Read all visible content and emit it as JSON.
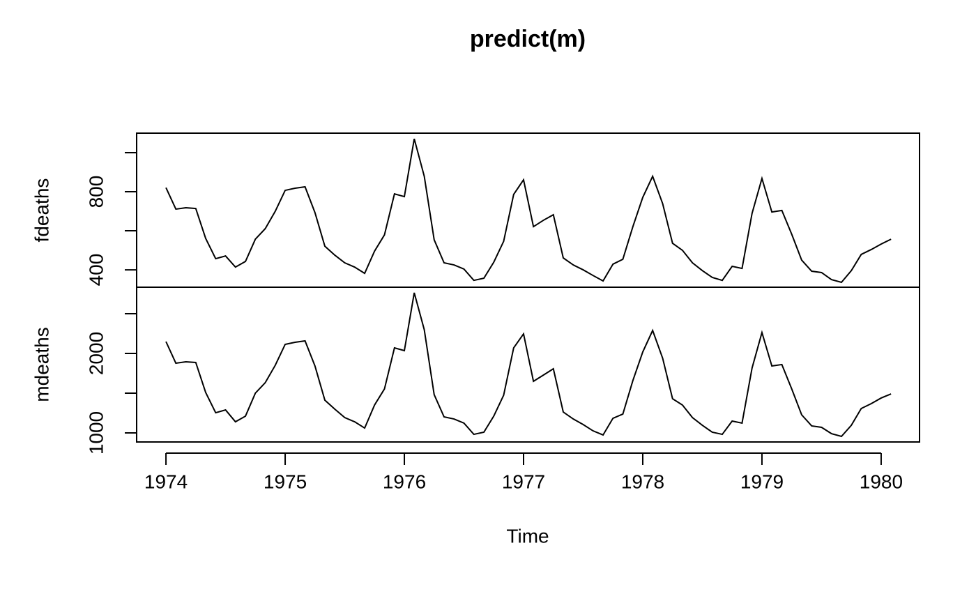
{
  "chart_data": {
    "type": "line",
    "title": "predict(m)",
    "xlabel": "Time",
    "color": "#000000",
    "x": [
      1974.0,
      1974.083,
      1974.167,
      1974.25,
      1974.333,
      1974.417,
      1974.5,
      1974.583,
      1974.667,
      1974.75,
      1974.833,
      1974.917,
      1975.0,
      1975.083,
      1975.167,
      1975.25,
      1975.333,
      1975.417,
      1975.5,
      1975.583,
      1975.667,
      1975.75,
      1975.833,
      1975.917,
      1976.0,
      1976.083,
      1976.167,
      1976.25,
      1976.333,
      1976.417,
      1976.5,
      1976.583,
      1976.667,
      1976.75,
      1976.833,
      1976.917,
      1977.0,
      1977.083,
      1977.167,
      1977.25,
      1977.333,
      1977.417,
      1977.5,
      1977.583,
      1977.667,
      1977.75,
      1977.833,
      1977.917,
      1978.0,
      1978.083,
      1978.167,
      1978.25,
      1978.333,
      1978.417,
      1978.5,
      1978.583,
      1978.667,
      1978.75,
      1978.833,
      1978.917,
      1979.0,
      1979.083,
      1979.167,
      1979.25,
      1979.333,
      1979.417,
      1979.5,
      1979.583,
      1979.667,
      1979.75,
      1979.833,
      1979.917,
      1980.0,
      1980.083
    ],
    "xlim": [
      1973.754,
      1980.322
    ],
    "xticks": [
      1974,
      1975,
      1976,
      1977,
      1978,
      1979,
      1980
    ],
    "panels": [
      {
        "ylabel": "fdeaths",
        "ylim": [
          311,
          1100
        ],
        "yticks": [
          400,
          800
        ],
        "minor_yticks": [
          600,
          1000
        ],
        "values": [
          821,
          711,
          718,
          714,
          561,
          457,
          471,
          414,
          443,
          557,
          611,
          700,
          807,
          818,
          825,
          693,
          521,
          475,
          436,
          414,
          382,
          496,
          579,
          789,
          775,
          1071,
          879,
          554,
          436,
          425,
          404,
          346,
          357,
          439,
          546,
          786,
          861,
          621,
          654,
          682,
          461,
          425,
          400,
          371,
          343,
          429,
          454,
          621,
          771,
          879,
          739,
          536,
          500,
          436,
          396,
          361,
          346,
          418,
          407,
          689,
          868,
          696,
          704,
          582,
          450,
          393,
          386,
          350,
          336,
          396,
          479,
          504,
          532,
          557
        ]
      },
      {
        "ylabel": "mdeaths",
        "ylim": [
          886,
          2833
        ],
        "yticks": [
          1000,
          2000
        ],
        "minor_yticks": [
          1500,
          2500
        ],
        "values": [
          2149,
          1877,
          1895,
          1886,
          1509,
          1254,
          1289,
          1140,
          1211,
          1500,
          1632,
          1851,
          2114,
          2140,
          2158,
          1842,
          1412,
          1298,
          1193,
          1140,
          1061,
          1351,
          1553,
          2070,
          2035,
          2763,
          2298,
          1482,
          1202,
          1175,
          1123,
          982,
          1009,
          1211,
          1474,
          2070,
          2246,
          1649,
          1728,
          1807,
          1263,
          1175,
          1105,
          1026,
          974,
          1184,
          1237,
          1658,
          2018,
          2289,
          1939,
          1430,
          1351,
          1193,
          1096,
          1009,
          982,
          1149,
          1123,
          1816,
          2263,
          1842,
          1860,
          1553,
          1228,
          1088,
          1070,
          991,
          956,
          1096,
          1307,
          1368,
          1439,
          1491
        ]
      }
    ]
  }
}
